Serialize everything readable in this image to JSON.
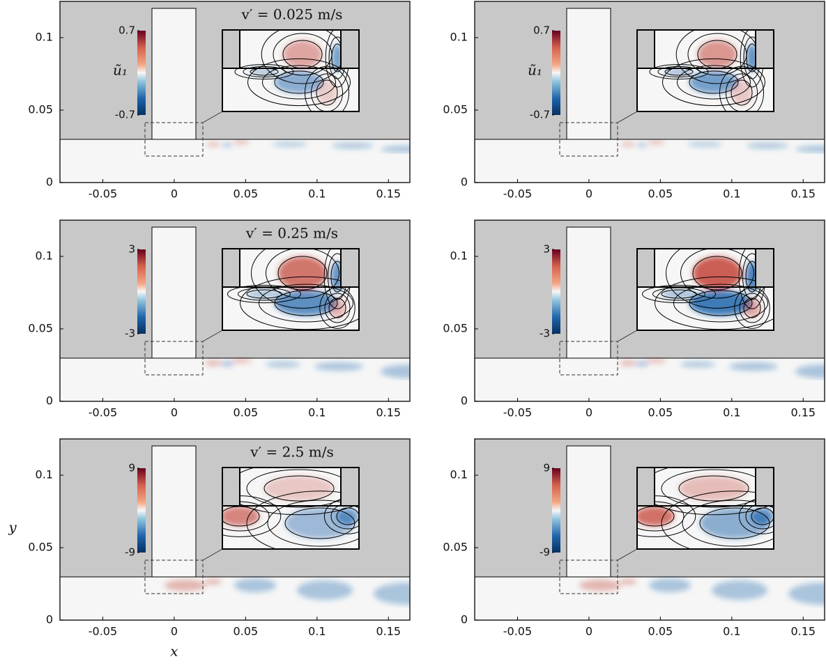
{
  "chart_data": [
    {
      "type": "field",
      "annotation": "v′ = 0.025 m/s",
      "colorbar_label": "ũ₁",
      "clim": [
        -0.7,
        0.7
      ],
      "cticks": [
        -0.7,
        0.7
      ],
      "xlim": [
        -0.08,
        0.165
      ],
      "ylim": [
        0,
        0.125
      ],
      "xticks": [
        -0.05,
        0,
        0.05,
        0.1,
        0.15
      ],
      "yticks": [
        0,
        0.05,
        0.1
      ]
    },
    {
      "type": "field",
      "colorbar_label": "ũ₁",
      "clim": [
        -0.7,
        0.7
      ],
      "cticks": [
        -0.7,
        0.7
      ],
      "xlim": [
        -0.08,
        0.165
      ],
      "ylim": [
        0,
        0.125
      ],
      "xticks": [
        -0.05,
        0,
        0.05,
        0.1,
        0.15
      ],
      "yticks": [
        0,
        0.05,
        0.1
      ]
    },
    {
      "type": "field",
      "annotation": "v′ = 0.25 m/s",
      "clim": [
        -3,
        3
      ],
      "cticks": [
        -3,
        3
      ],
      "xlim": [
        -0.08,
        0.165
      ],
      "ylim": [
        0,
        0.125
      ],
      "xticks": [
        -0.05,
        0,
        0.05,
        0.1,
        0.15
      ],
      "yticks": [
        0,
        0.05,
        0.1
      ]
    },
    {
      "type": "field",
      "clim": [
        -3,
        3
      ],
      "cticks": [
        -3,
        3
      ],
      "xlim": [
        -0.08,
        0.165
      ],
      "ylim": [
        0,
        0.125
      ],
      "xticks": [
        -0.05,
        0,
        0.05,
        0.1,
        0.15
      ],
      "yticks": [
        0,
        0.05,
        0.1
      ]
    },
    {
      "type": "field",
      "annotation": "v′ = 2.5 m/s",
      "clim": [
        -9,
        9
      ],
      "cticks": [
        -9,
        9
      ],
      "xlim": [
        -0.08,
        0.165
      ],
      "ylim": [
        0,
        0.125
      ],
      "xticks": [
        -0.05,
        0,
        0.05,
        0.1,
        0.15
      ],
      "yticks": [
        0,
        0.05,
        0.1
      ],
      "xlabel": "x",
      "ylabel": "y"
    },
    {
      "type": "field",
      "clim": [
        -9,
        9
      ],
      "cticks": [
        -9,
        9
      ],
      "xlim": [
        -0.08,
        0.165
      ],
      "ylim": [
        0,
        0.125
      ],
      "xticks": [
        -0.05,
        0,
        0.05,
        0.1,
        0.15
      ],
      "yticks": [
        0,
        0.05,
        0.1
      ]
    }
  ]
}
